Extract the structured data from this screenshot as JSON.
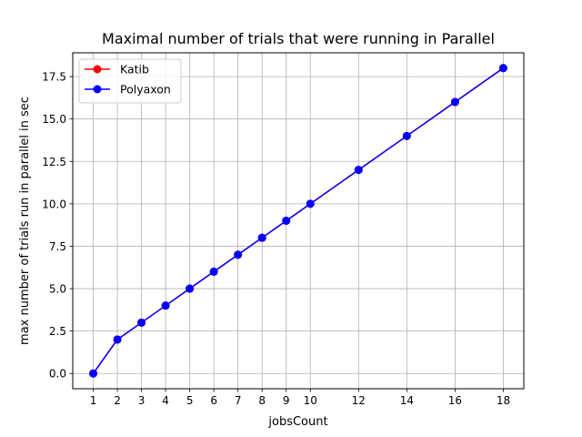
{
  "chart_data": {
    "type": "line",
    "title": "Maximal number of trials that were running in Parallel",
    "xlabel": "jobsCount",
    "ylabel": "max number of trials run in parallel in sec",
    "x": [
      1,
      2,
      3,
      4,
      5,
      6,
      7,
      8,
      9,
      10,
      12,
      14,
      16,
      18
    ],
    "xticks": [
      1,
      2,
      3,
      4,
      5,
      6,
      7,
      8,
      9,
      10,
      12,
      14,
      16,
      18
    ],
    "yticks": [
      0.0,
      2.5,
      5.0,
      7.5,
      10.0,
      12.5,
      15.0,
      17.5
    ],
    "xlim": [
      0.15,
      18.85
    ],
    "ylim": [
      -0.9,
      18.9
    ],
    "grid": true,
    "legend_position": "top-left",
    "series": [
      {
        "name": "Katib",
        "color": "#ff0000",
        "marker": "circle",
        "values": [
          0,
          2,
          3,
          4,
          5,
          6,
          7,
          8,
          9,
          10,
          12,
          14,
          16,
          18
        ]
      },
      {
        "name": "Polyaxon",
        "color": "#0000ff",
        "marker": "circle",
        "values": [
          0,
          2,
          3,
          4,
          5,
          6,
          7,
          8,
          9,
          10,
          12,
          14,
          16,
          18
        ]
      }
    ]
  }
}
